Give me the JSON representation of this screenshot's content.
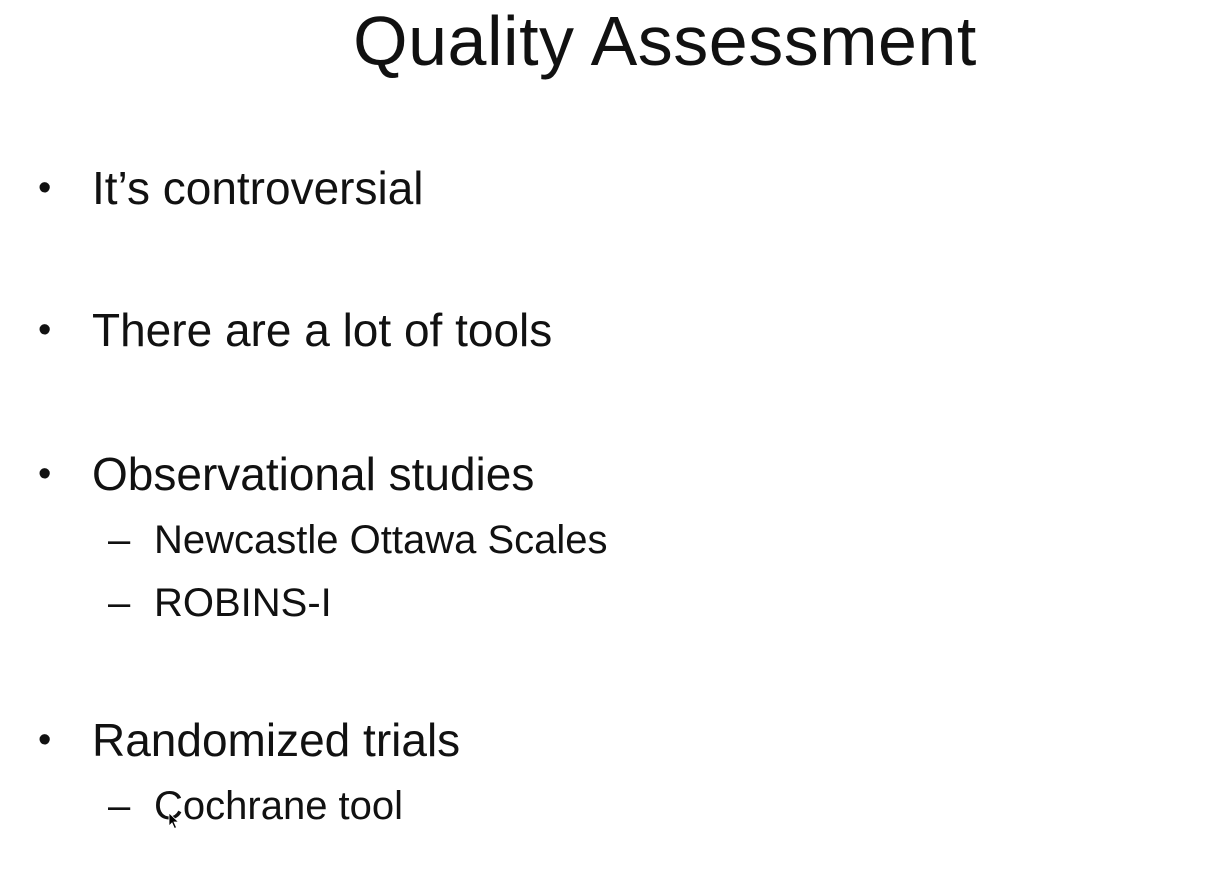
{
  "slide": {
    "title": "Quality Assessment",
    "bullets": [
      {
        "text": "It’s controversial",
        "subitems": []
      },
      {
        "text": "There are a lot of tools",
        "subitems": []
      },
      {
        "text": "Observational studies",
        "subitems": [
          "Newcastle Ottawa Scales",
          "ROBINS-I"
        ]
      },
      {
        "text": "Randomized trials",
        "subitems": [
          "Cochrane tool"
        ]
      }
    ],
    "bullet_glyph": "•",
    "subitem_glyph": "–"
  },
  "cursor": {
    "icon": "mouse-pointer-icon"
  }
}
